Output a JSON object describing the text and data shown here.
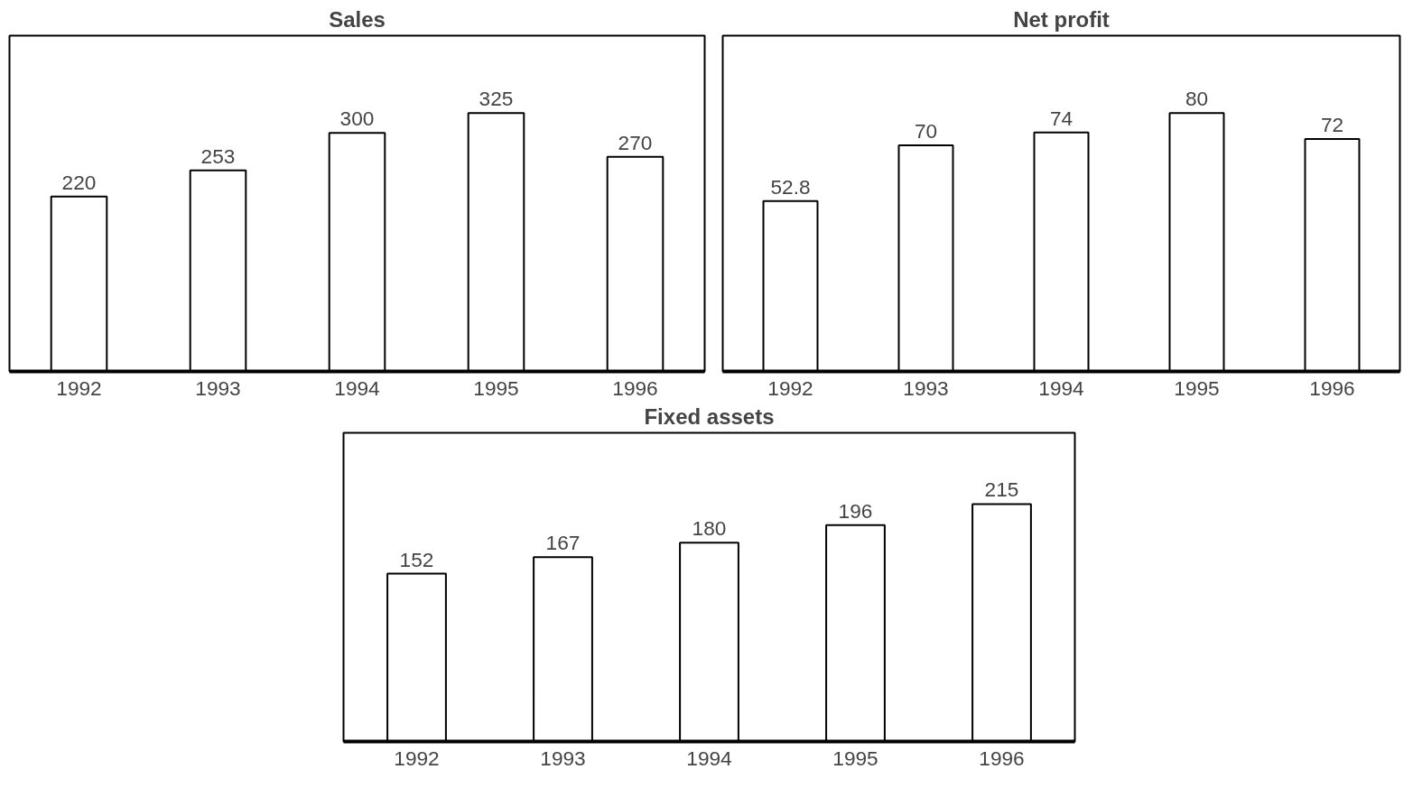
{
  "chart_data": [
    {
      "type": "bar",
      "title": "Sales",
      "categories": [
        "1992",
        "1993",
        "1994",
        "1995",
        "1996"
      ],
      "values": [
        220,
        253,
        300,
        325,
        270
      ],
      "color": "#ffffff",
      "data_labels": true,
      "grid": false,
      "tick_labels": "x"
    },
    {
      "type": "bar",
      "title": "Net profit",
      "categories": [
        "1992",
        "1993",
        "1994",
        "1995",
        "1996"
      ],
      "values": [
        52.8,
        70,
        74,
        80,
        72
      ],
      "color": "#ffffff",
      "data_labels": true,
      "grid": false,
      "tick_labels": "x"
    },
    {
      "type": "bar",
      "title": "Fixed assets",
      "categories": [
        "1992",
        "1993",
        "1994",
        "1995",
        "1996"
      ],
      "values": [
        152,
        167,
        180,
        196,
        215
      ],
      "color": "#ffffff",
      "data_labels": true,
      "grid": false,
      "tick_labels": "x"
    }
  ]
}
